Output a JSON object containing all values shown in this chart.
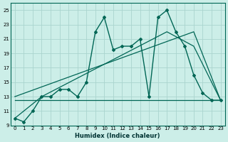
{
  "xlabel": "Humidex (Indice chaleur)",
  "background_color": "#cceee8",
  "grid_color": "#aad4ce",
  "line_color": "#006655",
  "line1_x": [
    0,
    1,
    2,
    3,
    4,
    5,
    6,
    7,
    8,
    9,
    10,
    11,
    12,
    13,
    14,
    15,
    16,
    17,
    18,
    19,
    20,
    21,
    22,
    23
  ],
  "line1_y": [
    10,
    9.5,
    11,
    13,
    13,
    14,
    14,
    13,
    15,
    22,
    24,
    19.5,
    20,
    20,
    21,
    13,
    24,
    25,
    22,
    20,
    16,
    13.5,
    12.5,
    12.5
  ],
  "line2_x": [
    0,
    3,
    17,
    20,
    23
  ],
  "line2_y": [
    10,
    13,
    22,
    20,
    12.5
  ],
  "line3_x": [
    0,
    20,
    23
  ],
  "line3_y": [
    13,
    22,
    12.5
  ],
  "line4_x": [
    0,
    23
  ],
  "line4_y": [
    12.5,
    12.5
  ],
  "ylim": [
    9,
    26
  ],
  "xlim": [
    -0.5,
    23.5
  ],
  "yticks": [
    9,
    11,
    13,
    15,
    17,
    19,
    21,
    23,
    25
  ],
  "xticks": [
    0,
    1,
    2,
    3,
    4,
    5,
    6,
    7,
    8,
    9,
    10,
    11,
    12,
    13,
    14,
    15,
    16,
    17,
    18,
    19,
    20,
    21,
    22,
    23
  ]
}
